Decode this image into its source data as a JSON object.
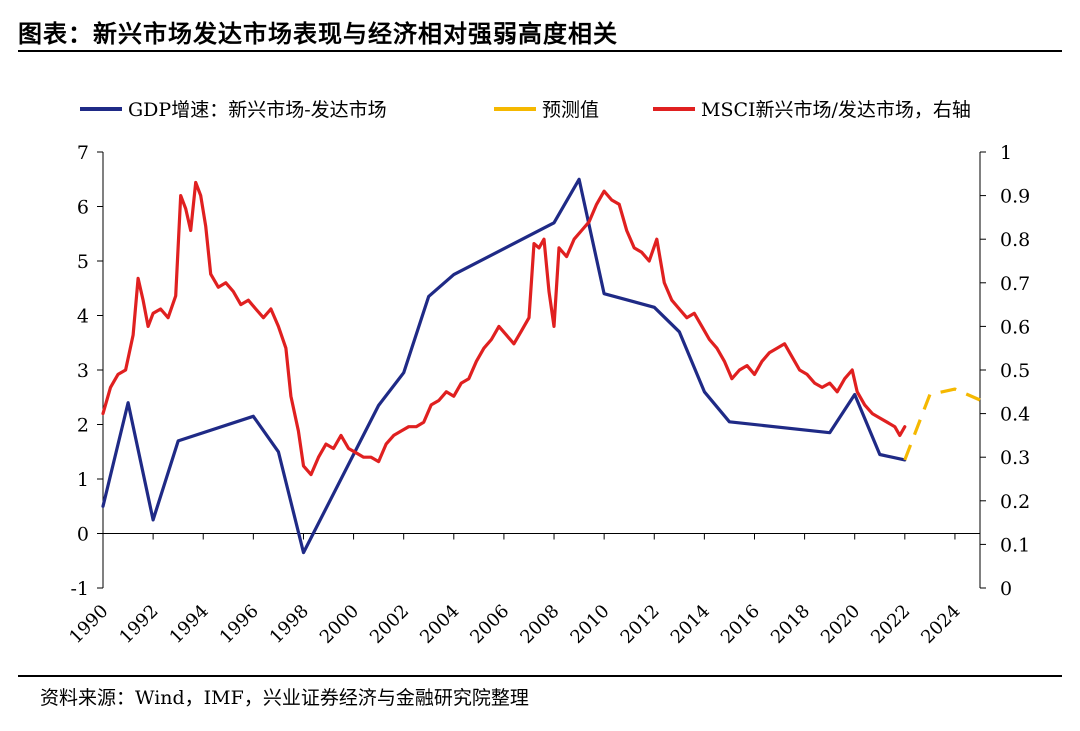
{
  "header": {
    "title": "图表：新兴市场发达市场表现与经济相对强弱高度相关"
  },
  "footer": {
    "source": "资料来源：Wind，IMF，兴业证券经济与金融研究院整理"
  },
  "chart_data": {
    "type": "line",
    "title": "图表：新兴市场发达市场表现与经济相对强弱高度相关",
    "xlabel": "",
    "ylabel_left": "",
    "ylabel_right": "",
    "x_range": [
      1990,
      2025
    ],
    "x_ticks": [
      "1990",
      "1992",
      "1994",
      "1996",
      "1998",
      "2000",
      "2002",
      "2004",
      "2006",
      "2008",
      "2010",
      "2012",
      "2014",
      "2016",
      "2018",
      "2020",
      "2022",
      "2024"
    ],
    "y_left": {
      "range": [
        -1,
        7
      ],
      "ticks": [
        "-1",
        "0",
        "1",
        "2",
        "3",
        "4",
        "5",
        "6",
        "7"
      ]
    },
    "y_right": {
      "range": [
        0,
        1
      ],
      "ticks": [
        "0",
        "0.1",
        "0.2",
        "0.3",
        "0.4",
        "0.5",
        "0.6",
        "0.7",
        "0.8",
        "0.9",
        "1"
      ]
    },
    "legend_position": "top",
    "colors": {
      "gdp": "#1f2a86",
      "forecast": "#f5b800",
      "msci": "#e02020",
      "axis": "#000000"
    },
    "series": [
      {
        "name": "GDP增速：新兴市场-发达市场",
        "axis": "left",
        "style": "solid",
        "points": [
          [
            1990,
            0.5
          ],
          [
            1991,
            2.4
          ],
          [
            1992,
            0.25
          ],
          [
            1993,
            1.7
          ],
          [
            1996,
            2.15
          ],
          [
            1997,
            1.5
          ],
          [
            1998,
            -0.35
          ],
          [
            2001,
            2.35
          ],
          [
            2002,
            2.95
          ],
          [
            2003,
            4.35
          ],
          [
            2004,
            4.75
          ],
          [
            2008,
            5.7
          ],
          [
            2009,
            6.5
          ],
          [
            2010,
            4.4
          ],
          [
            2012,
            4.15
          ],
          [
            2013,
            3.7
          ],
          [
            2014,
            2.6
          ],
          [
            2015,
            2.05
          ],
          [
            2019,
            1.85
          ],
          [
            2020,
            2.55
          ],
          [
            2021,
            1.45
          ],
          [
            2022,
            1.35
          ]
        ]
      },
      {
        "name": "预测值",
        "axis": "left",
        "style": "dashed",
        "points": [
          [
            2022,
            1.35
          ],
          [
            2023,
            2.55
          ],
          [
            2024,
            2.65
          ],
          [
            2025,
            2.45
          ]
        ]
      },
      {
        "name": "MSCI新兴市场/发达市场，右轴",
        "axis": "right",
        "style": "solid",
        "points": [
          [
            1990,
            0.4
          ],
          [
            1990.3,
            0.46
          ],
          [
            1990.6,
            0.49
          ],
          [
            1990.9,
            0.5
          ],
          [
            1991.2,
            0.58
          ],
          [
            1991.4,
            0.71
          ],
          [
            1991.6,
            0.66
          ],
          [
            1991.8,
            0.6
          ],
          [
            1992.0,
            0.63
          ],
          [
            1992.3,
            0.64
          ],
          [
            1992.6,
            0.62
          ],
          [
            1992.9,
            0.67
          ],
          [
            1993.1,
            0.9
          ],
          [
            1993.3,
            0.87
          ],
          [
            1993.5,
            0.82
          ],
          [
            1993.7,
            0.93
          ],
          [
            1993.9,
            0.9
          ],
          [
            1994.1,
            0.83
          ],
          [
            1994.3,
            0.72
          ],
          [
            1994.6,
            0.69
          ],
          [
            1994.9,
            0.7
          ],
          [
            1995.2,
            0.68
          ],
          [
            1995.5,
            0.65
          ],
          [
            1995.8,
            0.66
          ],
          [
            1996.1,
            0.64
          ],
          [
            1996.4,
            0.62
          ],
          [
            1996.7,
            0.64
          ],
          [
            1997.0,
            0.6
          ],
          [
            1997.3,
            0.55
          ],
          [
            1997.5,
            0.44
          ],
          [
            1997.8,
            0.36
          ],
          [
            1998.0,
            0.28
          ],
          [
            1998.3,
            0.26
          ],
          [
            1998.6,
            0.3
          ],
          [
            1998.9,
            0.33
          ],
          [
            1999.2,
            0.32
          ],
          [
            1999.5,
            0.35
          ],
          [
            1999.8,
            0.32
          ],
          [
            2000.1,
            0.31
          ],
          [
            2000.4,
            0.3
          ],
          [
            2000.7,
            0.3
          ],
          [
            2001.0,
            0.29
          ],
          [
            2001.3,
            0.33
          ],
          [
            2001.6,
            0.35
          ],
          [
            2001.9,
            0.36
          ],
          [
            2002.2,
            0.37
          ],
          [
            2002.5,
            0.37
          ],
          [
            2002.8,
            0.38
          ],
          [
            2003.1,
            0.42
          ],
          [
            2003.4,
            0.43
          ],
          [
            2003.7,
            0.45
          ],
          [
            2004.0,
            0.44
          ],
          [
            2004.3,
            0.47
          ],
          [
            2004.6,
            0.48
          ],
          [
            2004.9,
            0.52
          ],
          [
            2005.2,
            0.55
          ],
          [
            2005.5,
            0.57
          ],
          [
            2005.8,
            0.6
          ],
          [
            2006.1,
            0.58
          ],
          [
            2006.4,
            0.56
          ],
          [
            2006.7,
            0.59
          ],
          [
            2007.0,
            0.62
          ],
          [
            2007.2,
            0.79
          ],
          [
            2007.4,
            0.78
          ],
          [
            2007.6,
            0.8
          ],
          [
            2007.8,
            0.68
          ],
          [
            2008.0,
            0.6
          ],
          [
            2008.2,
            0.78
          ],
          [
            2008.5,
            0.76
          ],
          [
            2008.8,
            0.8
          ],
          [
            2009.1,
            0.82
          ],
          [
            2009.4,
            0.84
          ],
          [
            2009.7,
            0.88
          ],
          [
            2010.0,
            0.91
          ],
          [
            2010.3,
            0.89
          ],
          [
            2010.6,
            0.88
          ],
          [
            2010.9,
            0.82
          ],
          [
            2011.2,
            0.78
          ],
          [
            2011.5,
            0.77
          ],
          [
            2011.8,
            0.75
          ],
          [
            2012.1,
            0.8
          ],
          [
            2012.4,
            0.7
          ],
          [
            2012.7,
            0.66
          ],
          [
            2013.0,
            0.64
          ],
          [
            2013.3,
            0.62
          ],
          [
            2013.6,
            0.63
          ],
          [
            2013.9,
            0.6
          ],
          [
            2014.2,
            0.57
          ],
          [
            2014.5,
            0.55
          ],
          [
            2014.8,
            0.52
          ],
          [
            2015.1,
            0.48
          ],
          [
            2015.4,
            0.5
          ],
          [
            2015.7,
            0.51
          ],
          [
            2016.0,
            0.49
          ],
          [
            2016.3,
            0.52
          ],
          [
            2016.6,
            0.54
          ],
          [
            2016.9,
            0.55
          ],
          [
            2017.2,
            0.56
          ],
          [
            2017.5,
            0.53
          ],
          [
            2017.8,
            0.5
          ],
          [
            2018.1,
            0.49
          ],
          [
            2018.4,
            0.47
          ],
          [
            2018.7,
            0.46
          ],
          [
            2019.0,
            0.47
          ],
          [
            2019.3,
            0.45
          ],
          [
            2019.6,
            0.48
          ],
          [
            2019.9,
            0.5
          ],
          [
            2020.1,
            0.45
          ],
          [
            2020.4,
            0.42
          ],
          [
            2020.7,
            0.4
          ],
          [
            2021.0,
            0.39
          ],
          [
            2021.3,
            0.38
          ],
          [
            2021.6,
            0.37
          ],
          [
            2021.8,
            0.35
          ],
          [
            2022.0,
            0.37
          ]
        ]
      }
    ]
  }
}
